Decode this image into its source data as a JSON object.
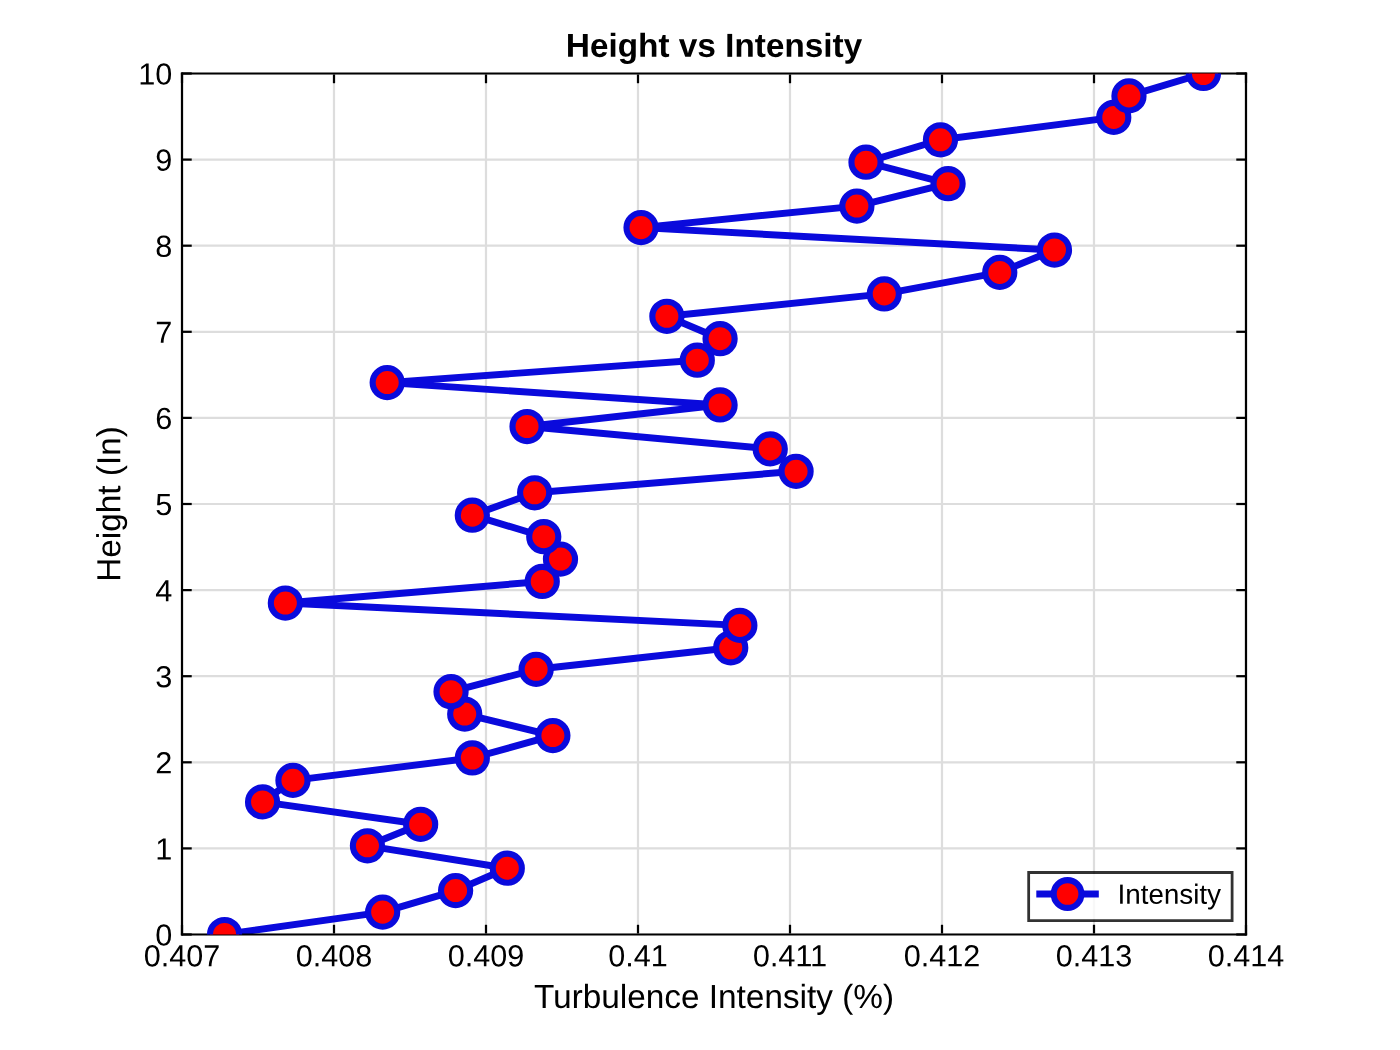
{
  "chart_data": {
    "type": "line",
    "title": "Height vs Intensity",
    "xlabel": "Turbulence Intensity (%)",
    "ylabel": "Height (In)",
    "x": [
      0.40728,
      0.40832,
      0.4088,
      0.40914,
      0.40822,
      0.40857,
      0.40753,
      0.40773,
      0.40891,
      0.40944,
      0.40886,
      0.40877,
      0.40933,
      0.41061,
      0.41067,
      0.40768,
      0.40937,
      0.40949,
      0.40938,
      0.40891,
      0.40932,
      0.41104,
      0.41087,
      0.40927,
      0.41054,
      0.40835,
      0.41039,
      0.41054,
      0.41019,
      0.41162,
      0.41238,
      0.41274,
      0.41002,
      0.41144,
      0.41204,
      0.4115,
      0.41199,
      0.41313,
      0.41323,
      0.41372
    ],
    "series": [
      {
        "name": "Intensity",
        "color": "#0a0adc",
        "colors": [
          "#ff0000",
          "#ff0000",
          "#ff0000",
          "#ff0000",
          "#ff0000",
          "#ff0000",
          "#ff0000",
          "#ff0000",
          "#ff0000",
          "#ff0000",
          "#ff0000",
          "#ff0000",
          "#ff0000",
          "#ff0000",
          "#ff0000",
          "#ff0000",
          "#ff0000",
          "#ff0000",
          "#ff0000",
          "#ff0000",
          "#ff0000",
          "#ff0000",
          "#ff0000",
          "#ff0000",
          "#ff0000",
          "#ff0000",
          "#ff0000",
          "#ff0000",
          "#ff0000",
          "#ff0000",
          "#ff0000",
          "#ff0000",
          "#ff0000",
          "#ff0000",
          "#ff0000",
          "#ff0000",
          "#ff0000",
          "#ff0000",
          "#ff0000",
          "#ff0000"
        ],
        "values": [
          0,
          0.26,
          0.51,
          0.77,
          1.03,
          1.28,
          1.54,
          1.79,
          2.05,
          2.31,
          2.56,
          2.82,
          3.08,
          3.33,
          3.59,
          3.85,
          4.1,
          4.36,
          4.62,
          4.87,
          5.13,
          5.38,
          5.64,
          5.9,
          6.15,
          6.41,
          6.67,
          6.92,
          7.18,
          7.44,
          7.69,
          7.95,
          8.21,
          8.46,
          8.72,
          8.97,
          9.23,
          9.49,
          9.74,
          10
        ]
      }
    ],
    "xlim": [
      0.407,
      0.414
    ],
    "xticks": [
      0.407,
      0.408,
      0.409,
      0.41,
      0.411,
      0.412,
      0.413,
      0.414
    ],
    "ylim": [
      0,
      10
    ],
    "yticks": [
      0,
      1,
      2,
      3,
      4,
      5,
      6,
      7,
      8,
      9,
      10
    ],
    "grid": true,
    "legend": "bottom right",
    "marker": "circle",
    "line_style": "solid"
  }
}
